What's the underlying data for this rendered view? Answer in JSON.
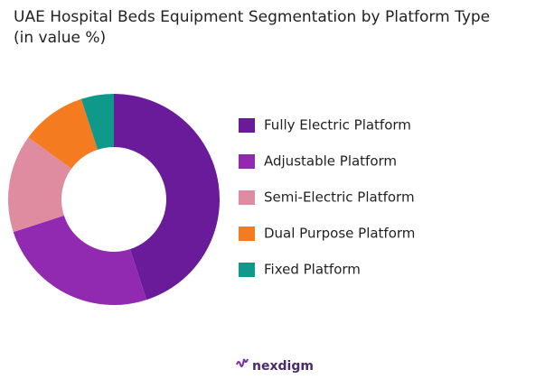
{
  "chart_data": {
    "type": "donut",
    "title": [
      "UAE Hospital Beds Equipment Segmentation by Platform Type",
      "(in value %)"
    ],
    "categories": [
      "Fully Electric Platform",
      "Adjustable Platform",
      "Semi-Electric Platform",
      "Dual Purpose Platform",
      "Fixed Platform"
    ],
    "values": [
      45,
      25,
      15,
      10,
      5
    ],
    "colors": [
      "#6a1b9a",
      "#9229b1",
      "#e08ca0",
      "#f47b20",
      "#0f998b"
    ],
    "legend": "right"
  },
  "footer": {
    "logo": "nexdigm"
  }
}
